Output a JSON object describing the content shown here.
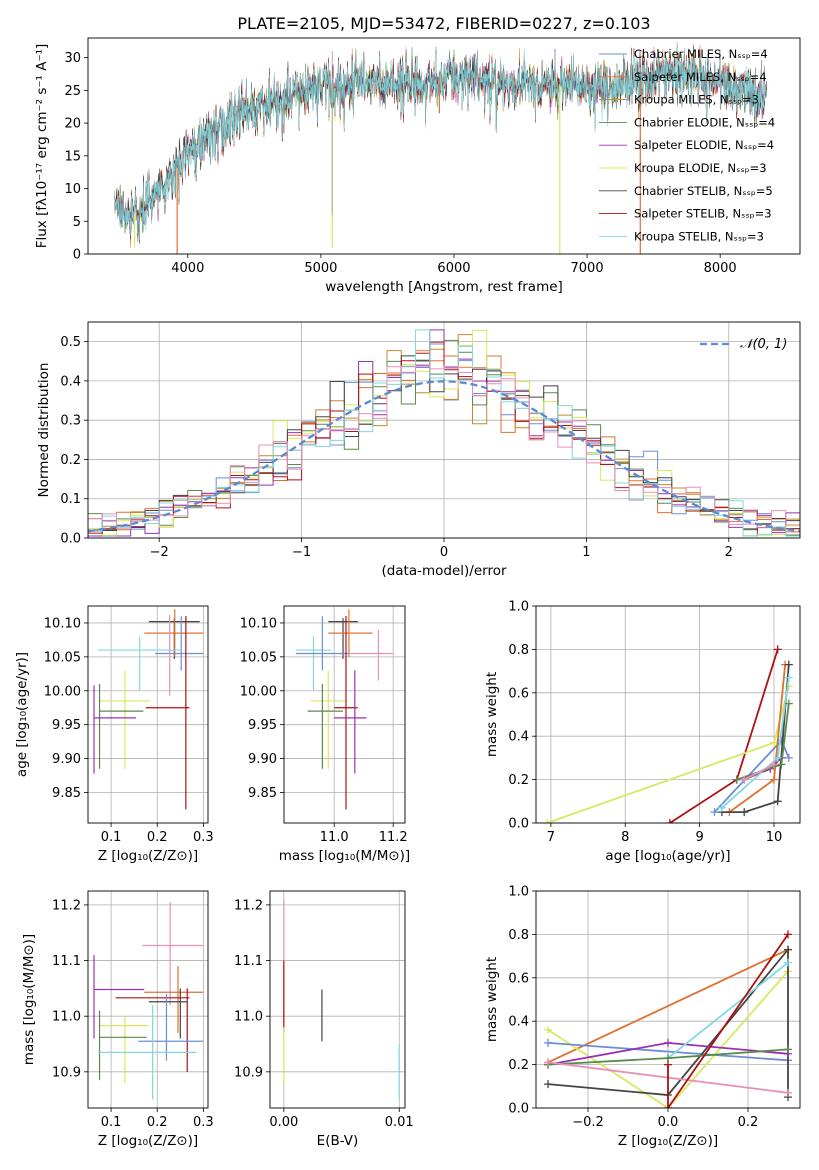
{
  "title": "PLATE=2105, MJD=53472, FIBERID=0227, z=0.103",
  "colors": {
    "Chabrier MILES": "#6b8fd6",
    "Salpeter MILES": "#e07030",
    "Kroupa MILES": "#c8882a",
    "Chabrier ELODIE": "#5a8a4a",
    "Salpeter ELODIE": "#9b30b0",
    "Kroupa ELODIE": "#d8e860",
    "Chabrier STELIB": "#444444",
    "Salpeter STELIB": "#b01010",
    "Kroupa STELIB": "#80d8e0",
    "pink": "#e890b8",
    "gauss": "#5a8ad8"
  },
  "chart_data": [
    {
      "type": "line",
      "id": "spectrum",
      "title": "PLATE=2105, MJD=53472, FIBERID=0227, z=0.103",
      "xlabel": "wavelength [Angstrom, rest frame]",
      "ylabel": "Flux [fλ10⁻¹⁷ erg cm⁻² s⁻¹ A⁻¹]",
      "xlim": [
        3250,
        8600
      ],
      "ylim": [
        0,
        33
      ],
      "xticks": [
        "4000",
        "5000",
        "6000",
        "7000",
        "8000"
      ],
      "yticks": [
        "0",
        "5",
        "10",
        "15",
        "20",
        "25",
        "30"
      ],
      "legend_placement": "upper-right",
      "series": [
        {
          "name": "Chabrier MILES, Nₛₛₚ=4"
        },
        {
          "name": "Salpeter MILES, Nₛₛₚ=4"
        },
        {
          "name": "Kroupa MILES, Nₛₛₚ=3"
        },
        {
          "name": "Chabrier ELODIE, Nₛₛₚ=4"
        },
        {
          "name": "Salpeter ELODIE, Nₛₛₚ=4"
        },
        {
          "name": "Kroupa ELODIE, Nₛₛₚ=3"
        },
        {
          "name": "Chabrier STELIB, Nₛₛₚ=5"
        },
        {
          "name": "Salpeter STELIB, Nₛₛₚ=3"
        },
        {
          "name": "Kroupa STELIB, Nₛₛₚ=3"
        }
      ],
      "continuum": {
        "x": [
          3450,
          3600,
          3800,
          3950,
          4050,
          4200,
          4400,
          4600,
          4800,
          5000,
          5200,
          5500,
          5800,
          6000,
          6300,
          6600,
          6900,
          7200,
          7500,
          7800,
          8100,
          8350
        ],
        "y": [
          6.5,
          6.2,
          10,
          14,
          17,
          19,
          21.5,
          23,
          24.5,
          25.5,
          26,
          26.5,
          26.3,
          27,
          26.5,
          26,
          26,
          25.5,
          27,
          28,
          25.5,
          24
        ]
      },
      "drops": [
        {
          "x": 3600,
          "y": 1.0
        },
        {
          "x": 3920,
          "y": 0
        },
        {
          "x": 5085,
          "y": 1.0
        },
        {
          "x": 5890,
          "y": 21.5
        },
        {
          "x": 6795,
          "y": 0
        },
        {
          "x": 7400,
          "y": 0
        }
      ],
      "spike": {
        "x": 5085,
        "y": 31
      }
    },
    {
      "type": "line",
      "id": "residuals",
      "xlabel": "(data-model)/error",
      "ylabel": "Normed distribution",
      "xlim": [
        -2.5,
        2.5
      ],
      "ylim": [
        0,
        0.55
      ],
      "xticks": [
        "−2",
        "−1",
        "0",
        "1",
        "2"
      ],
      "yticks": [
        "0.0",
        "0.1",
        "0.2",
        "0.3",
        "0.4",
        "0.5"
      ],
      "legend": "𝒩(0, 1)",
      "bin_width": 0.1,
      "bin_start": -2.5
    },
    {
      "type": "scatter",
      "id": "age_vs_Z",
      "xlabel": "Z [log₁₀(Z/Z⊙)]",
      "ylabel": "age  [log₁₀(age/yr)]",
      "xlim": [
        0.05,
        0.31
      ],
      "ylim": [
        9.805,
        10.125
      ],
      "xticks": [
        "0.1",
        "0.2",
        "0.3"
      ],
      "yticks": [
        "9.85",
        "9.90",
        "9.95",
        "10.00",
        "10.05",
        "10.10"
      ],
      "points": [
        {
          "s": "Chabrier STELIB",
          "x": 0.237,
          "y": 10.102,
          "xl": 0.182,
          "xh": 0.292,
          "yl": 10.047,
          "yh": 10.107
        },
        {
          "s": "Salpeter MILES",
          "x": 0.238,
          "y": 10.085,
          "xl": 0.172,
          "xh": 0.3,
          "yl": 10.05,
          "yh": 10.12
        },
        {
          "s": "Kroupa STELIB",
          "x": 0.162,
          "y": 10.06,
          "xl": 0.072,
          "xh": 0.25,
          "yl": 10.0,
          "yh": 10.08
        },
        {
          "s": "Chabrier MILES",
          "x": 0.252,
          "y": 10.055,
          "xl": 0.195,
          "xh": 0.3,
          "yl": 10.03,
          "yh": 10.11
        },
        {
          "s": "pink",
          "x": 0.227,
          "y": 10.05,
          "xl": 0.227,
          "xh": 0.227,
          "yl": 9.992,
          "yh": 10.112
        },
        {
          "s": "Kroupa ELODIE",
          "x": 0.13,
          "y": 9.985,
          "xl": 0.075,
          "xh": 0.185,
          "yl": 9.885,
          "yh": 10.03
        },
        {
          "s": "Salpeter STELIB",
          "x": 0.262,
          "y": 9.975,
          "xl": 0.175,
          "xh": 0.27,
          "yl": 9.825,
          "yh": 10.11
        },
        {
          "s": "Chabrier ELODIE",
          "x": 0.075,
          "y": 9.97,
          "xl": 0.075,
          "xh": 0.17,
          "yl": 9.885,
          "yh": 10.01
        },
        {
          "s": "Salpeter ELODIE",
          "x": 0.063,
          "y": 9.96,
          "xl": 0.063,
          "xh": 0.154,
          "yl": 9.878,
          "yh": 10.008
        }
      ]
    },
    {
      "type": "scatter",
      "id": "age_vs_mass",
      "xlabel": "mass [log₁₀(M/M⊙)]",
      "ylabel": "",
      "xlim": [
        10.83,
        11.24
      ],
      "ylim": [
        9.805,
        10.125
      ],
      "xticks": [
        "11.0",
        "11.2"
      ],
      "yticks": [
        "9.85",
        "9.90",
        "9.95",
        "10.00",
        "10.05",
        "10.10"
      ],
      "points": [
        {
          "s": "Chabrier STELIB",
          "x": 11.03,
          "y": 10.102,
          "xl": 10.98,
          "xh": 11.08,
          "yl": 10.047,
          "yh": 10.107
        },
        {
          "s": "Salpeter MILES",
          "x": 11.05,
          "y": 10.085,
          "xl": 10.98,
          "xh": 11.13,
          "yl": 10.05,
          "yh": 10.12
        },
        {
          "s": "Kroupa STELIB",
          "x": 10.93,
          "y": 10.06,
          "xl": 10.87,
          "xh": 10.99,
          "yl": 10.0,
          "yh": 10.08
        },
        {
          "s": "Chabrier MILES",
          "x": 10.96,
          "y": 10.055,
          "xl": 10.87,
          "xh": 11.05,
          "yl": 10.03,
          "yh": 10.11
        },
        {
          "s": "pink",
          "x": 11.15,
          "y": 10.055,
          "xl": 11.05,
          "xh": 11.2,
          "yl": 10.015,
          "yh": 10.09
        },
        {
          "s": "Kroupa ELODIE",
          "x": 10.98,
          "y": 9.985,
          "xl": 10.92,
          "xh": 11.04,
          "yl": 9.885,
          "yh": 10.03
        },
        {
          "s": "Salpeter STELIB",
          "x": 11.04,
          "y": 9.975,
          "xl": 11.0,
          "xh": 11.08,
          "yl": 9.825,
          "yh": 10.11
        },
        {
          "s": "Chabrier ELODIE",
          "x": 10.96,
          "y": 9.97,
          "xl": 10.91,
          "xh": 11.03,
          "yl": 9.885,
          "yh": 10.01
        },
        {
          "s": "Salpeter ELODIE",
          "x": 11.07,
          "y": 9.96,
          "xl": 11.0,
          "xh": 11.11,
          "yl": 9.878,
          "yh": 10.03
        }
      ]
    },
    {
      "type": "line",
      "id": "massweight_vs_age",
      "xlabel": "age  [log₁₀(age/yr)]",
      "ylabel": "mass weight",
      "xlim": [
        6.8,
        10.35
      ],
      "ylim": [
        0,
        1.0
      ],
      "xticks": [
        "7",
        "8",
        "9",
        "10"
      ],
      "yticks": [
        "0.0",
        "0.2",
        "0.4",
        "0.6",
        "0.8",
        "1.0"
      ],
      "series": [
        {
          "s": "Salpeter STELIB",
          "x": [
            8.6,
            9.5,
            10.05
          ],
          "y": [
            0.0,
            0.2,
            0.8
          ]
        },
        {
          "s": "Kroupa ELODIE",
          "x": [
            6.95,
            10.0,
            10.2
          ],
          "y": [
            0.0,
            0.37,
            0.63
          ]
        },
        {
          "s": "Chabrier MILES",
          "x": [
            9.2,
            10.1,
            10.2
          ],
          "y": [
            0.05,
            0.38,
            0.3
          ]
        },
        {
          "s": "Salpeter MILES",
          "x": [
            9.4,
            10.0,
            10.15
          ],
          "y": [
            0.05,
            0.2,
            0.73
          ]
        },
        {
          "s": "Chabrier STELIB",
          "x": [
            9.3,
            9.6,
            10.05,
            10.2
          ],
          "y": [
            0.05,
            0.05,
            0.1,
            0.73
          ]
        },
        {
          "s": "Salpeter ELODIE",
          "x": [
            9.6,
            9.95,
            10.1
          ],
          "y": [
            0.2,
            0.25,
            0.3
          ]
        },
        {
          "s": "Kroupa STELIB",
          "x": [
            9.3,
            10.05,
            10.2
          ],
          "y": [
            0.07,
            0.3,
            0.67
          ]
        },
        {
          "s": "Chabrier ELODIE",
          "x": [
            9.5,
            10.1,
            10.2
          ],
          "y": [
            0.2,
            0.27,
            0.55
          ]
        },
        {
          "s": "pink",
          "x": [
            9.6,
            10.0
          ],
          "y": [
            0.2,
            0.27
          ]
        }
      ]
    },
    {
      "type": "scatter",
      "id": "mass_vs_Z",
      "xlabel": "Z [log₁₀(Z/Z⊙)]",
      "ylabel": "mass [log₁₀(M/M⊙)]",
      "xlim": [
        0.05,
        0.31
      ],
      "ylim": [
        10.835,
        11.225
      ],
      "xticks": [
        "0.1",
        "0.2",
        "0.3"
      ],
      "yticks": [
        "10.9",
        "11.0",
        "11.1",
        "11.2"
      ],
      "points": [
        {
          "s": "pink",
          "x": 0.228,
          "y": 11.127,
          "xl": 0.168,
          "xh": 0.3,
          "yl": 11.02,
          "yh": 11.205
        },
        {
          "s": "Salpeter ELODIE",
          "x": 0.063,
          "y": 11.048,
          "xl": 0.063,
          "xh": 0.172,
          "yl": 10.96,
          "yh": 11.11
        },
        {
          "s": "Salpeter MILES",
          "x": 0.245,
          "y": 11.043,
          "xl": 0.172,
          "xh": 0.3,
          "yl": 10.97,
          "yh": 11.09
        },
        {
          "s": "Salpeter STELIB",
          "x": 0.265,
          "y": 11.033,
          "xl": 0.11,
          "xh": 0.27,
          "yl": 10.9,
          "yh": 11.05
        },
        {
          "s": "Chabrier STELIB",
          "x": 0.25,
          "y": 11.026,
          "xl": 0.182,
          "xh": 0.266,
          "yl": 10.96,
          "yh": 11.05
        },
        {
          "s": "Kroupa ELODIE",
          "x": 0.13,
          "y": 10.983,
          "xl": 0.075,
          "xh": 0.182,
          "yl": 10.88,
          "yh": 11.0
        },
        {
          "s": "Chabrier ELODIE",
          "x": 0.075,
          "y": 10.962,
          "xl": 0.075,
          "xh": 0.177,
          "yl": 10.885,
          "yh": 11.01
        },
        {
          "s": "Chabrier MILES",
          "x": 0.22,
          "y": 10.955,
          "xl": 0.159,
          "xh": 0.3,
          "yl": 10.92,
          "yh": 11.04
        },
        {
          "s": "Kroupa STELIB",
          "x": 0.19,
          "y": 10.935,
          "xl": 0.072,
          "xh": 0.285,
          "yl": 10.85,
          "yh": 11.02
        }
      ]
    },
    {
      "type": "scatter",
      "id": "mass_vs_EBV",
      "xlabel": "E(B-V)",
      "ylabel": "",
      "xlim": [
        -0.0012,
        0.0105
      ],
      "ylim": [
        10.835,
        11.225
      ],
      "xticks": [
        "0.00",
        "0.01"
      ],
      "yticks": [
        "10.9",
        "11.0",
        "11.1",
        "11.2"
      ],
      "points": [
        {
          "s": "pink",
          "x": 0.0,
          "y": 11.1,
          "xl": 0.0,
          "xh": 0.0,
          "yl": 10.99,
          "yh": 11.21
        },
        {
          "s": "Salpeter STELIB",
          "x": 0.0,
          "y": 11.03,
          "xl": 0.0,
          "xh": 0.0,
          "yl": 10.97,
          "yh": 11.1
        },
        {
          "s": "Kroupa ELODIE",
          "x": 0.0,
          "y": 10.93,
          "xl": 0.0,
          "xh": 0.0,
          "yl": 10.88,
          "yh": 10.98
        },
        {
          "s": "Chabrier STELIB",
          "x": 0.0033,
          "y": 11.0,
          "xl": 0.0033,
          "xh": 0.0033,
          "yl": 10.955,
          "yh": 11.048
        },
        {
          "s": "Kroupa STELIB",
          "x": 0.01,
          "y": 10.9,
          "xl": 0.01,
          "xh": 0.01,
          "yl": 10.85,
          "yh": 10.95
        }
      ]
    },
    {
      "type": "line",
      "id": "massweight_vs_Z",
      "xlabel": "Z [log₁₀(Z/Z⊙)]",
      "ylabel": "mass weight",
      "xlim": [
        -0.33,
        0.33
      ],
      "ylim": [
        0,
        1.0
      ],
      "xticks": [
        "−0.2",
        "0.0",
        "0.2"
      ],
      "yticks": [
        "0.0",
        "0.2",
        "0.4",
        "0.6",
        "0.8",
        "1.0"
      ],
      "series": [
        {
          "s": "Salpeter MILES",
          "x": [
            -0.3,
            0.3
          ],
          "y": [
            0.21,
            0.73
          ]
        },
        {
          "s": "Kroupa ELODIE",
          "x": [
            -0.3,
            0.0,
            0.3
          ],
          "y": [
            0.36,
            0.0,
            0.63
          ]
        },
        {
          "s": "Chabrier MILES",
          "x": [
            -0.3,
            0.3
          ],
          "y": [
            0.3,
            0.22
          ]
        },
        {
          "s": "Chabrier STELIB",
          "x": [
            -0.3,
            0.0,
            0.3,
            0.3
          ],
          "y": [
            0.11,
            0.06,
            0.73,
            0.05
          ]
        },
        {
          "s": "Salpeter ELODIE",
          "x": [
            -0.3,
            0.0,
            0.3
          ],
          "y": [
            0.2,
            0.3,
            0.25
          ]
        },
        {
          "s": "Kroupa STELIB",
          "x": [
            0.0,
            0.3
          ],
          "y": [
            0.23,
            0.67
          ]
        },
        {
          "s": "Chabrier ELODIE",
          "x": [
            -0.3,
            0.0,
            0.3
          ],
          "y": [
            0.2,
            0.23,
            0.27
          ]
        },
        {
          "s": "pink",
          "x": [
            -0.3,
            0.3
          ],
          "y": [
            0.21,
            0.07
          ]
        },
        {
          "s": "Salpeter STELIB",
          "x": [
            0.0,
            0.0,
            0.3
          ],
          "y": [
            0.2,
            0.0,
            0.8
          ]
        }
      ]
    }
  ]
}
